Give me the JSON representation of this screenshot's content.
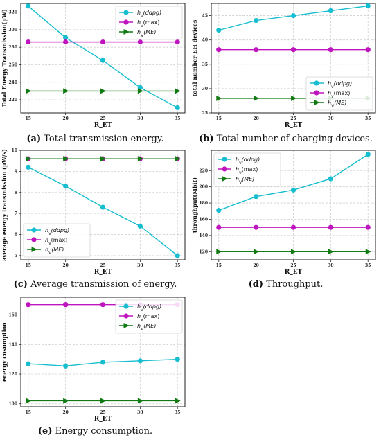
{
  "colors": {
    "ddpg": "#17becf",
    "max": "#bf15bf",
    "me": "#127a12",
    "grid": "#cfcfcf",
    "frame": "#222222"
  },
  "captions": [
    {
      "letter": "(a)",
      "text": "Total transmission energy."
    },
    {
      "letter": "(b)",
      "text": "Total number of charging devices."
    },
    {
      "letter": "(c)",
      "text": "Average transmission of energy."
    },
    {
      "letter": "(d)",
      "text": "Throughput."
    },
    {
      "letter": "(e)",
      "text": "Energy consumption."
    }
  ],
  "chart_data": [
    {
      "type": "line",
      "xlabel": "R_ET",
      "ylabel": "Total Energy Transmission(μW)",
      "x": [
        15,
        20,
        25,
        30,
        35
      ],
      "ylim": [
        205,
        330
      ],
      "yticks": [
        220,
        240,
        260,
        280,
        300,
        320
      ],
      "legend_position": "top-right",
      "series": [
        {
          "name": "h_v(ddpg)",
          "name_base": "h",
          "name_sub": "v",
          "name_rest": "(ddpg)",
          "italic": true,
          "marker": "circle",
          "color": "#17becf",
          "values": [
            327,
            291,
            265,
            234,
            211
          ]
        },
        {
          "name": "h_v(max)",
          "name_base": "h",
          "name_sub": "v",
          "name_rest": "(max)",
          "italic": false,
          "marker": "circle",
          "color": "#bf15bf",
          "values": [
            286,
            286,
            286,
            286,
            286
          ]
        },
        {
          "name": "h_V(ME)",
          "name_base": "h",
          "name_sub": "V",
          "name_rest": "(ME)",
          "italic": true,
          "marker": "triangle",
          "color": "#127a12",
          "values": [
            230,
            230,
            230,
            230,
            230
          ]
        }
      ]
    },
    {
      "type": "line",
      "xlabel": "R_ET",
      "ylabel": "total number EH devices",
      "x": [
        15,
        20,
        25,
        30,
        35
      ],
      "ylim": [
        25,
        47.5
      ],
      "yticks": [
        25,
        30,
        35,
        40,
        45
      ],
      "legend_position": "bottom-right",
      "series": [
        {
          "name": "h_v(ddpg)",
          "name_base": "h",
          "name_sub": "v",
          "name_rest": "(ddpg)",
          "italic": true,
          "marker": "circle",
          "color": "#17becf",
          "values": [
            42,
            44,
            45,
            46,
            47
          ]
        },
        {
          "name": "h_v(max)",
          "name_base": "h",
          "name_sub": "v",
          "name_rest": "(max)",
          "italic": false,
          "marker": "circle",
          "color": "#bf15bf",
          "values": [
            38,
            38,
            38,
            38,
            38
          ]
        },
        {
          "name": "h_V(ME)",
          "name_base": "h",
          "name_sub": "V",
          "name_rest": "(ME)",
          "italic": true,
          "marker": "triangle",
          "color": "#127a12",
          "values": [
            28,
            28,
            28,
            28,
            28
          ]
        }
      ]
    },
    {
      "type": "line",
      "xlabel": "R_ET",
      "ylabel": "average energy transmission (μW/s)",
      "x": [
        15,
        20,
        25,
        30,
        35
      ],
      "ylim": [
        4.8,
        10
      ],
      "yticks": [
        5,
        6,
        7,
        8,
        9,
        10
      ],
      "legend_position": "bottom-left",
      "series": [
        {
          "name": "h_v(ddpg)",
          "name_base": "h",
          "name_sub": "v",
          "name_rest": "(ddpg)",
          "italic": true,
          "marker": "circle",
          "color": "#17becf",
          "values": [
            9.2,
            8.3,
            7.3,
            6.4,
            5.0
          ]
        },
        {
          "name": "h_v(max)",
          "name_base": "h",
          "name_sub": "v",
          "name_rest": "(max)",
          "italic": false,
          "marker": "circle",
          "color": "#bf15bf",
          "values": [
            9.6,
            9.6,
            9.6,
            9.6,
            9.6
          ]
        },
        {
          "name": "h_V(ME)",
          "name_base": "h",
          "name_sub": "V",
          "name_rest": "(ME)",
          "italic": true,
          "marker": "triangle",
          "color": "#127a12",
          "values": [
            9.6,
            9.6,
            9.6,
            9.6,
            9.6
          ]
        }
      ]
    },
    {
      "type": "line",
      "xlabel": "R_ET",
      "ylabel": "throughput(Mbit)",
      "x": [
        15,
        20,
        25,
        30,
        35
      ],
      "ylim": [
        110,
        245
      ],
      "yticks": [
        120,
        140,
        160,
        180,
        200,
        220
      ],
      "legend_position": "top-left",
      "series": [
        {
          "name": "h_v(ddpg)",
          "name_base": "h",
          "name_sub": "v",
          "name_rest": "(ddpg)",
          "italic": true,
          "marker": "circle",
          "color": "#17becf",
          "values": [
            171,
            188,
            196,
            210,
            240
          ]
        },
        {
          "name": "h_v(max)",
          "name_base": "h",
          "name_sub": "v",
          "name_rest": "(max)",
          "italic": false,
          "marker": "circle",
          "color": "#bf15bf",
          "values": [
            150,
            150,
            150,
            150,
            150
          ]
        },
        {
          "name": "h_V(ME)",
          "name_base": "h",
          "name_sub": "V",
          "name_rest": "(ME)",
          "italic": true,
          "marker": "triangle",
          "color": "#127a12",
          "values": [
            120,
            120,
            120,
            120,
            120
          ]
        }
      ]
    },
    {
      "type": "line",
      "xlabel": "R_ET",
      "ylabel": "energy cosumption",
      "x": [
        15,
        20,
        25,
        30,
        35
      ],
      "ylim": [
        98,
        172
      ],
      "yticks": [
        100,
        120,
        140,
        160
      ],
      "legend_position": "top-right",
      "series": [
        {
          "name": "h_v(ddpg)",
          "name_base": "h",
          "name_sub": "v",
          "name_rest": "(ddpg)",
          "italic": true,
          "marker": "circle",
          "color": "#17becf",
          "values": [
            127,
            125.5,
            128,
            129,
            130
          ]
        },
        {
          "name": "h_v(max)",
          "name_base": "h",
          "name_sub": "v",
          "name_rest": "(max)",
          "italic": false,
          "marker": "circle",
          "color": "#bf15bf",
          "values": [
            167,
            167,
            167,
            167,
            167
          ]
        },
        {
          "name": "h_V(ME)",
          "name_base": "h",
          "name_sub": "V",
          "name_rest": "(ME)",
          "italic": true,
          "marker": "triangle",
          "color": "#127a12",
          "values": [
            102,
            102,
            102,
            102,
            102
          ]
        }
      ]
    }
  ]
}
